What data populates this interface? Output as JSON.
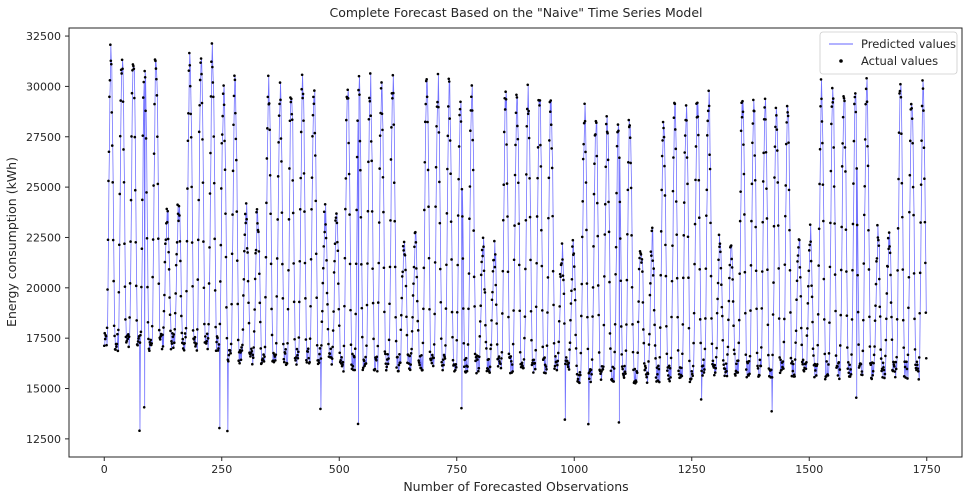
{
  "chart_data": {
    "type": "line",
    "title": "Complete Forecast Based on the \"Naive\" Time Series Model",
    "xlabel": "Number of Forecasted Observations",
    "ylabel": "Energy consumption (kWh)",
    "xlim": [
      -75,
      1825
    ],
    "ylim": [
      11600,
      32900
    ],
    "x_ticks": [
      0,
      250,
      500,
      750,
      1000,
      1250,
      1500,
      1750
    ],
    "y_ticks": [
      12500,
      15000,
      17500,
      20000,
      22500,
      25000,
      27500,
      30000,
      32500
    ],
    "legend_position": "upper right",
    "grid": false,
    "n_observations": 1750,
    "series": [
      {
        "name": "Predicted values",
        "style": "line",
        "color": "#0000ff",
        "weekly_daily_profile": {
          "description": "Repeating daily cycle of 24 hourly observations; weekdays peak ~28000-32000 kWh, weekends peak ~22000-24000 kWh, nightly minimum ~15500-17500 kWh",
          "segments": [
            {
              "x_start": 0,
              "x_end": 250,
              "weekday_peak": 31500,
              "weekend_peak": 24000,
              "trough": 17300
            },
            {
              "x_start": 250,
              "x_end": 500,
              "weekday_peak": 30000,
              "weekend_peak": 23500,
              "trough": 16600
            },
            {
              "x_start": 500,
              "x_end": 750,
              "weekday_peak": 30000,
              "weekend_peak": 22500,
              "trough": 16300
            },
            {
              "x_start": 750,
              "x_end": 1000,
              "weekday_peak": 29500,
              "weekend_peak": 22000,
              "trough": 16200
            },
            {
              "x_start": 1000,
              "x_end": 1250,
              "weekday_peak": 28500,
              "weekend_peak": 22300,
              "trough": 15700
            },
            {
              "x_start": 1250,
              "x_end": 1500,
              "weekday_peak": 29300,
              "weekend_peak": 22300,
              "trough": 16000
            },
            {
              "x_start": 1500,
              "x_end": 1750,
              "weekday_peak": 29800,
              "weekend_peak": 22500,
              "trough": 15900
            }
          ]
        }
      },
      {
        "name": "Actual values",
        "style": "scatter",
        "color": "#000000",
        "follows": "Predicted values"
      }
    ]
  },
  "colors": {
    "predicted": "#0000ff",
    "actual": "#000000",
    "axes": "#262626",
    "background": "#ffffff"
  }
}
